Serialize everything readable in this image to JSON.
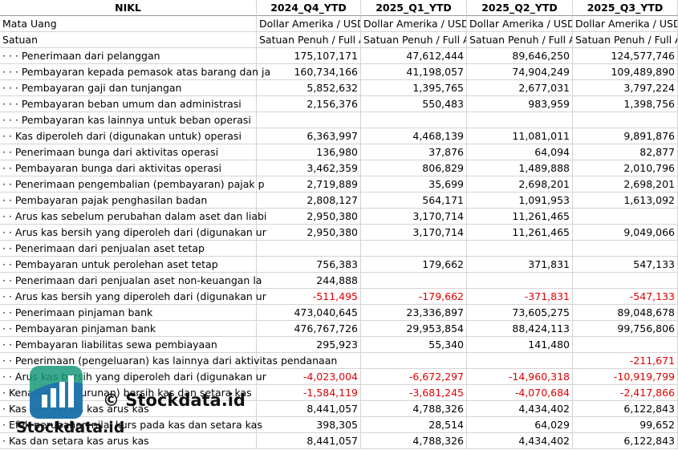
{
  "header": [
    "NIKL",
    "2024_Q4_YTD",
    "2025_Q1_YTD",
    "2025_Q2_YTD",
    "2025_Q3_YTD"
  ],
  "rows": [
    [
      "Mata Uang",
      "Dollar Amerika / USD",
      "Dollar Amerika / USD",
      "Dollar Amerika / USD",
      "Dollar Amerika / USD"
    ],
    [
      "Satuan",
      "Satuan Penuh / Full A",
      "Satuan Penuh / Full A",
      "Satuan Penuh / Full A",
      "Satuan Penuh / Full A"
    ],
    [
      "· · · Penerimaan dari pelanggan",
      "175,107,171",
      "47,612,444",
      "89,646,250",
      "124,577,746"
    ],
    [
      "· · · Pembayaran kepada pemasok atas barang dan ja",
      "160,734,166",
      "41,198,057",
      "74,904,249",
      "109,489,890"
    ],
    [
      "· · · Pembayaran gaji dan tunjangan",
      "5,852,632",
      "1,395,765",
      "2,677,031",
      "3,797,224"
    ],
    [
      "· · · Pembayaran beban umum dan administrasi",
      "2,156,376",
      "550,483",
      "983,959",
      "1,398,756"
    ],
    [
      "· · · Pembayaran kas lainnya untuk beban operasi",
      null,
      null,
      null,
      null
    ],
    [
      "· · Kas diperoleh dari (digunakan untuk) operasi",
      "6,363,997",
      "4,468,139",
      "11,081,011",
      "9,891,876"
    ],
    [
      "· · Penerimaan bunga dari aktivitas operasi",
      "136,980",
      "37,876",
      "64,094",
      "82,877"
    ],
    [
      "· · Pembayaran bunga dari aktivitas operasi",
      "3,462,359",
      "806,829",
      "1,489,888",
      "2,010,796"
    ],
    [
      "· · Penerimaan pengembalian (pembayaran) pajak p",
      "2,719,889",
      "35,699",
      "2,698,201",
      "2,698,201"
    ],
    [
      "· · Pembayaran pajak penghasilan badan",
      "2,808,127",
      "564,171",
      "1,091,953",
      "1,613,092"
    ],
    [
      "· · Arus kas sebelum perubahan dalam aset dan liabi",
      "2,950,380",
      "3,170,714",
      "11,261,465",
      null
    ],
    [
      "· · Arus kas bersih yang diperoleh dari (digunakan ur",
      "2,950,380",
      "3,170,714",
      "11,261,465",
      "9,049,066"
    ],
    [
      "· · Penerimaan dari penjualan aset tetap",
      null,
      null,
      null,
      null
    ],
    [
      "· · Pembayaran untuk perolehan aset tetap",
      "756,383",
      "179,662",
      "371,831",
      "547,133"
    ],
    [
      "· · Penerimaan dari penjualan aset non-keuangan la",
      "244,888",
      null,
      null,
      null
    ],
    [
      "· · Arus kas bersih yang diperoleh dari (digunakan ur",
      "-511,495",
      "-179,662",
      "-371,831",
      "-547,133"
    ],
    [
      "· · Penerimaan pinjaman bank",
      "473,040,645",
      "23,336,897",
      "73,605,275",
      "89,048,678"
    ],
    [
      "· · Pembayaran pinjaman bank",
      "476,767,726",
      "29,953,854",
      "88,424,113",
      "99,756,806"
    ],
    [
      "· · Pembayaran liabilitas sewa pembiayaan",
      "295,923",
      "55,340",
      "141,480",
      null
    ],
    [
      "· · Penerimaan (pengeluaran) kas lainnya dari aktivitas pendanaan",
      null,
      null,
      null,
      "-211,671"
    ],
    [
      "· · Arus kas bersih yang diperoleh dari (digunakan ur",
      "-4,023,004",
      "-6,672,297",
      "-14,960,318",
      "-10,919,799"
    ],
    [
      "· Kenaikan (penurunan) bersih kas dan setara kas",
      "-1,584,119",
      "-3,681,245",
      "-4,070,684",
      "-2,417,866"
    ],
    [
      "· Kas dan setara kas arus kas",
      "8,441,057",
      "4,788,326",
      "4,434,402",
      "6,122,843"
    ],
    [
      "· Efek perubahan nilai kurs pada kas dan setara kas",
      "398,305",
      "28,514",
      "64,029",
      "99,652"
    ],
    [
      "· Kas dan setara kas arus kas",
      "8,441,057",
      "4,788,326",
      "4,434,402",
      "6,122,843"
    ]
  ],
  "watermark": {
    "copyright": "© Stockdata.id",
    "brand": "Stockdata.id"
  }
}
